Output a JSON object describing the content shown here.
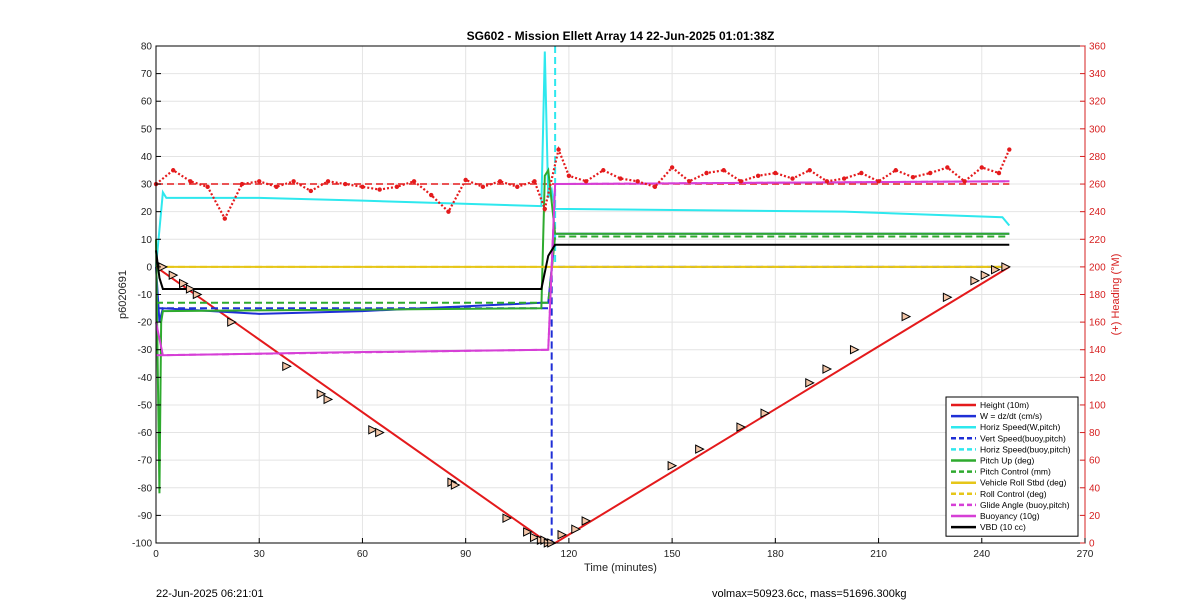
{
  "chart_data": {
    "type": "line",
    "title": "SG602 - Mission Ellett Array 14 22-Jun-2025 01:01:38Z",
    "xlabel": "Time (minutes)",
    "ylabel": "p6020691",
    "y2label": "(+) Heading (°M)",
    "xlim": [
      0,
      270
    ],
    "ylim": [
      -100,
      80
    ],
    "y2lim": [
      0,
      360
    ],
    "xticks": [
      0,
      30,
      60,
      90,
      120,
      150,
      180,
      210,
      240,
      270
    ],
    "yticks": [
      80,
      70,
      60,
      50,
      40,
      30,
      20,
      10,
      0,
      -10,
      -20,
      -30,
      -40,
      -50,
      -60,
      -70,
      -80,
      -90,
      -100
    ],
    "y2ticks": [
      360,
      340,
      320,
      300,
      280,
      260,
      240,
      220,
      200,
      180,
      160,
      140,
      120,
      100,
      80,
      60,
      40,
      20,
      0
    ],
    "grid": true,
    "legend_position": "bottom-right",
    "series": [
      {
        "name": "Height (10m)",
        "color": "#e41a1c",
        "style": "solid",
        "x": [
          0,
          114,
          116,
          248
        ],
        "y": [
          0,
          -100,
          -100,
          0
        ]
      },
      {
        "name": "W = dz/dt (cm/s)",
        "color": "#1f2fd6",
        "style": "solid",
        "x": [
          0,
          1,
          2,
          30,
          60,
          112,
          114,
          116,
          248
        ],
        "y": [
          0,
          -20,
          -15,
          -17,
          -16,
          -13,
          -13,
          12,
          12
        ]
      },
      {
        "name": "Horiz Speed(W,pitch)",
        "color": "#2ee8ee",
        "style": "solid",
        "x": [
          0,
          2,
          3,
          30,
          60,
          112,
          113,
          114,
          115,
          116,
          200,
          246,
          248
        ],
        "y": [
          0,
          27,
          25,
          25,
          24,
          22,
          78,
          25,
          28,
          21,
          20,
          18,
          15
        ]
      },
      {
        "name": "Vert Speed(buoy,pitch)",
        "color": "#1f2fd6",
        "style": "dashed",
        "x": [
          0,
          115,
          115,
          115,
          248
        ],
        "y": [
          -15,
          -15,
          -100,
          0,
          0
        ]
      },
      {
        "name": "Horiz Speed(buoy,pitch)",
        "color": "#2ee8ee",
        "style": "dashed",
        "x": [
          116,
          116
        ],
        "y": [
          80,
          0
        ]
      },
      {
        "name": "Pitch Up (deg)",
        "color": "#2eaa2e",
        "style": "solid",
        "x": [
          0,
          1,
          1.5,
          2,
          112,
          113,
          114,
          116,
          248
        ],
        "y": [
          10,
          -82,
          -20,
          -16,
          -15,
          33,
          35,
          12,
          12
        ]
      },
      {
        "name": "Pitch Control (mm)",
        "color": "#2eaa2e",
        "style": "dashed",
        "x": [
          0,
          114,
          116,
          248
        ],
        "y": [
          -13,
          -13,
          11,
          11
        ]
      },
      {
        "name": "Vehicle Roll Stbd (deg)",
        "color": "#e6c619",
        "style": "solid",
        "x": [
          0,
          114,
          116,
          248
        ],
        "y": [
          0,
          0,
          0,
          0
        ]
      },
      {
        "name": "Roll Control (deg)",
        "color": "#e6c619",
        "style": "dashed",
        "x": [
          0,
          114,
          116,
          248
        ],
        "y": [
          0,
          0,
          0,
          0
        ]
      },
      {
        "name": "Glide Angle (buoy,pitch)",
        "color": "#d63fd6",
        "style": "dashed",
        "x": [
          0,
          114,
          116,
          248
        ],
        "y": [
          -32,
          -30,
          30,
          31
        ]
      },
      {
        "name": "Buoyancy (10g)",
        "color": "#d63fd6",
        "style": "solid",
        "x": [
          0,
          2,
          50,
          114,
          116,
          248
        ],
        "y": [
          -20,
          -32,
          -31,
          -30,
          30,
          31
        ]
      },
      {
        "name": "VBD (10 cc)",
        "color": "#000000",
        "style": "solid",
        "x": [
          0,
          1,
          2,
          112,
          114,
          116,
          248
        ],
        "y": [
          6,
          -4,
          -8,
          -8,
          4,
          8,
          8
        ]
      }
    ],
    "heading_series": {
      "name": "Heading",
      "color": "#e41a1c",
      "axis": "right",
      "x": [
        0,
        5,
        10,
        15,
        20,
        25,
        30,
        35,
        40,
        45,
        50,
        55,
        60,
        65,
        70,
        75,
        80,
        85,
        90,
        95,
        100,
        105,
        110,
        113,
        117,
        120,
        125,
        130,
        135,
        140,
        145,
        150,
        155,
        160,
        165,
        170,
        175,
        180,
        185,
        190,
        195,
        200,
        205,
        210,
        215,
        220,
        225,
        230,
        235,
        240,
        245,
        248
      ],
      "y": [
        260,
        270,
        262,
        258,
        235,
        260,
        262,
        258,
        262,
        255,
        262,
        260,
        258,
        256,
        258,
        262,
        252,
        240,
        263,
        258,
        262,
        258,
        262,
        242,
        285,
        266,
        262,
        270,
        264,
        262,
        258,
        272,
        262,
        268,
        270,
        262,
        266,
        268,
        264,
        270,
        262,
        264,
        268,
        262,
        270,
        265,
        268,
        272,
        262,
        272,
        268,
        285
      ]
    },
    "heading_reference": {
      "color": "#e41a1c",
      "style": "dashed",
      "x": [
        0,
        248
      ],
      "y": [
        260,
        260
      ]
    },
    "direction_markers": {
      "x": [
        2,
        5,
        8,
        10,
        12,
        22,
        38,
        48,
        50,
        63,
        65,
        86,
        87,
        102,
        108,
        110,
        112,
        113,
        114,
        115,
        118,
        122,
        125,
        150,
        158,
        170,
        177,
        190,
        195,
        203,
        218,
        230,
        238,
        241,
        244,
        247
      ],
      "y": [
        0,
        -3,
        -6,
        -8,
        -10,
        -20,
        -36,
        -46,
        -48,
        -59,
        -60,
        -78,
        -79,
        -91,
        -96,
        -98,
        -99,
        -99,
        -100,
        -100,
        -97,
        -95,
        -92,
        -72,
        -66,
        -58,
        -53,
        -42,
        -37,
        -30,
        -18,
        -11,
        -5,
        -3,
        -1,
        0
      ]
    }
  },
  "footer": {
    "left": "22-Jun-2025 06:21:01",
    "right": "volmax=50923.6cc, mass=51696.300kg"
  }
}
